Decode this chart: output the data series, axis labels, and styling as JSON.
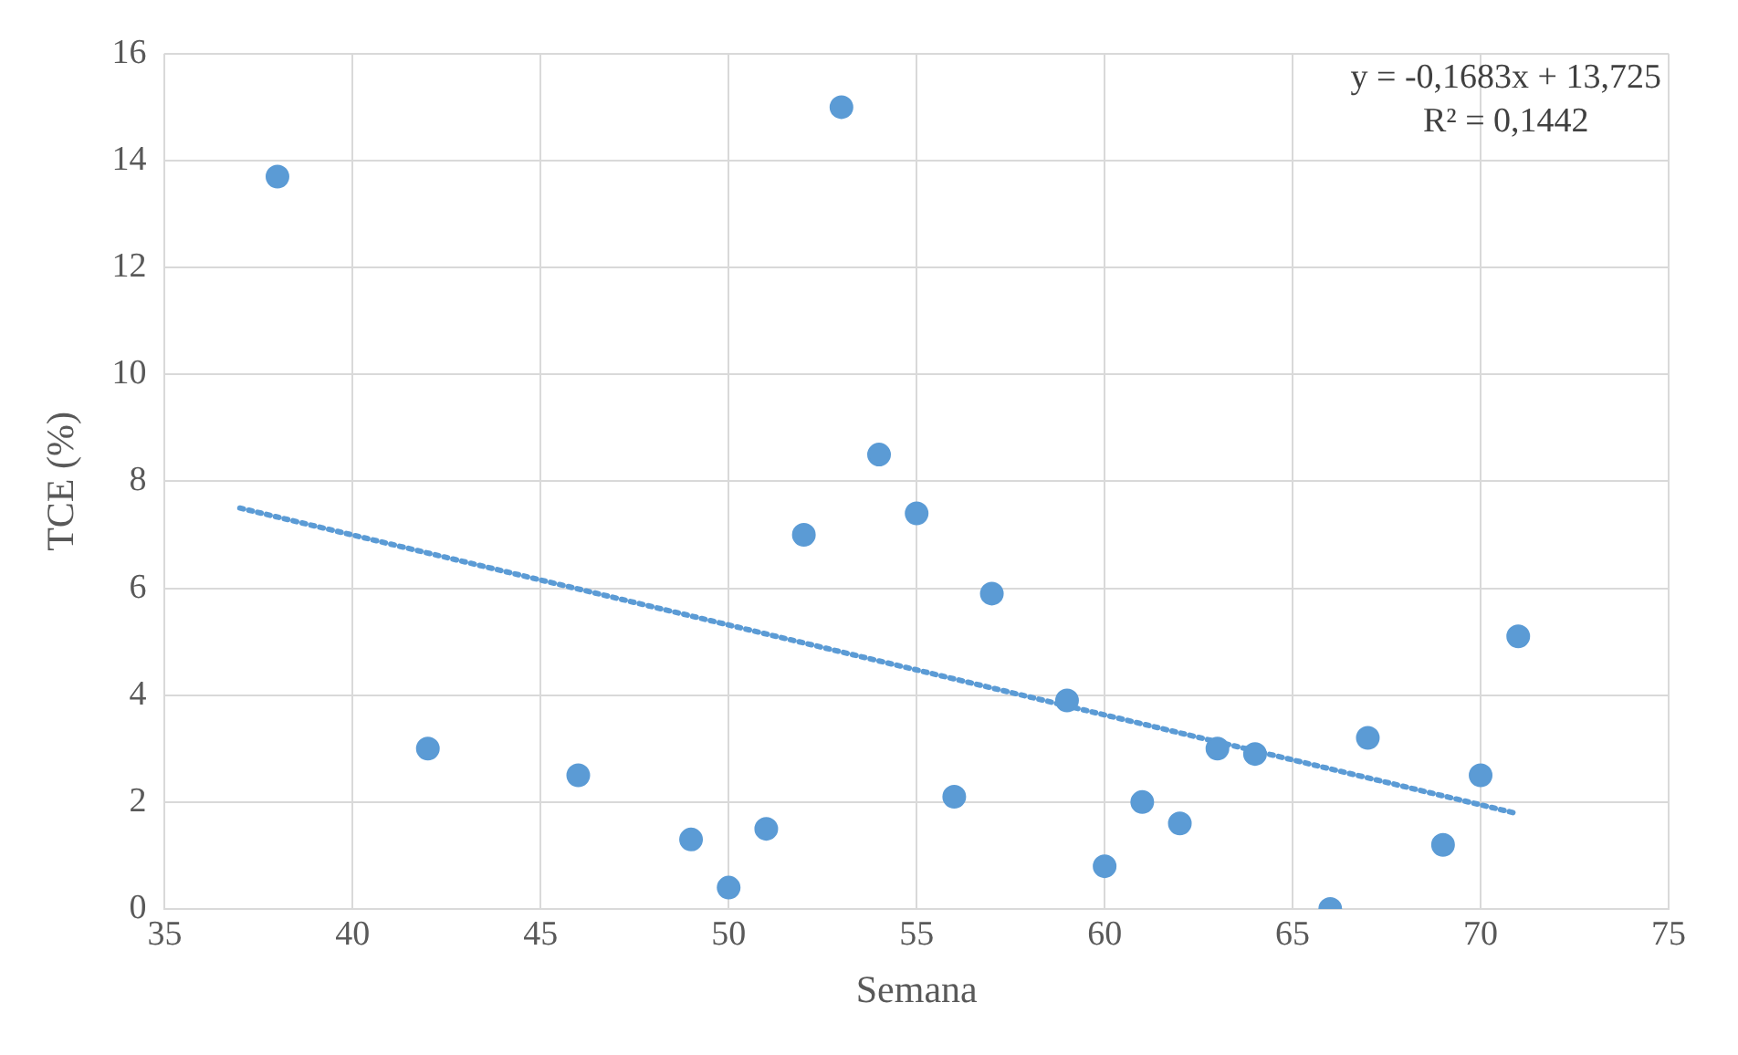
{
  "chart_data": {
    "type": "scatter",
    "xlabel": "Semana",
    "ylabel": "TCE (%)",
    "xlim": [
      35,
      75
    ],
    "xticks": [
      35,
      40,
      45,
      50,
      55,
      60,
      65,
      70,
      75
    ],
    "ylim": [
      0,
      16
    ],
    "yticks": [
      0,
      2,
      4,
      6,
      8,
      10,
      12,
      14,
      16
    ],
    "grid": true,
    "legend": false,
    "marker": "circle",
    "annotations": [
      "y = -0,1683x + 13,725",
      "R² = 0,1442"
    ],
    "series": [
      {
        "type": "scatter",
        "color": "#5b9bd5",
        "x": [
          38,
          42,
          46,
          49,
          50,
          51,
          52,
          53,
          54,
          55,
          56,
          57,
          59,
          60,
          61,
          62,
          63,
          64,
          66,
          67,
          69,
          70,
          71
        ],
        "values": [
          13.7,
          3.0,
          2.5,
          1.3,
          0.4,
          1.5,
          7.0,
          15.0,
          8.5,
          7.4,
          2.1,
          5.9,
          3.9,
          0.8,
          2.0,
          1.6,
          3.0,
          2.9,
          0.0,
          3.2,
          1.2,
          2.5,
          5.1
        ]
      },
      {
        "type": "line",
        "color": "#5b9bd5",
        "line_style": "dotted",
        "marker": "none",
        "x": [
          37,
          71
        ],
        "values": [
          7.5,
          1.78
        ]
      }
    ]
  }
}
